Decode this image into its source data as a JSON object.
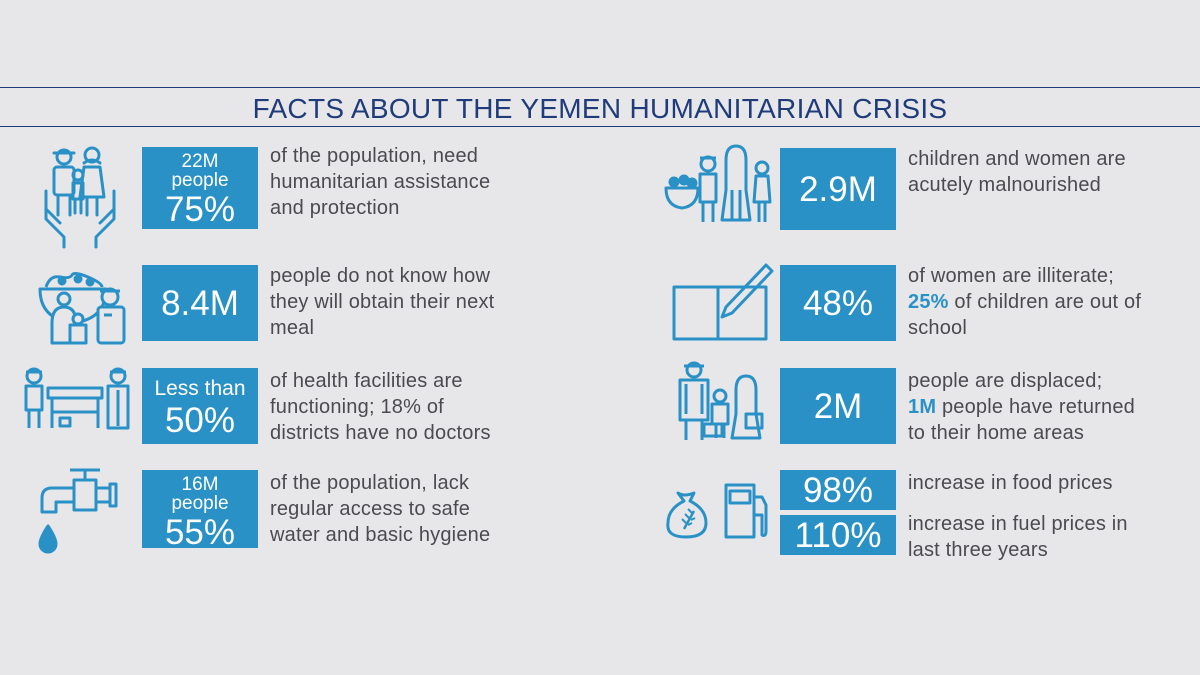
{
  "title": "FACTS ABOUT THE YEMEN HUMANITARIAN CRISIS",
  "colors": {
    "accent": "#2a91c6",
    "title": "#1f3b7a",
    "text": "#4b4b4f",
    "background": "#e7e7ea"
  },
  "left": [
    {
      "icon": "family-in-hands-icon",
      "stat_top": "22M",
      "stat_mid": "people",
      "stat_big": "75%",
      "desc": [
        "of the population, need",
        "humanitarian assistance",
        "and protection"
      ]
    },
    {
      "icon": "food-bowl-family-icon",
      "stat_big": "8.4M",
      "desc": [
        "people do not know how",
        "they will obtain their next",
        "meal"
      ]
    },
    {
      "icon": "health-facility-icon",
      "stat_top": "Less than",
      "stat_big": "50%",
      "desc": [
        "of health facilities are",
        "functioning; 18% of",
        "districts have no doctors"
      ]
    },
    {
      "icon": "water-tap-icon",
      "stat_top": "16M",
      "stat_mid": "people",
      "stat_big": "55%",
      "desc": [
        "of the population, lack",
        "regular access to safe",
        "water and basic hygiene"
      ]
    }
  ],
  "right": [
    {
      "icon": "malnourished-family-icon",
      "stat_big": "2.9M",
      "desc": [
        "children and women are",
        "acutely malnourished"
      ]
    },
    {
      "icon": "book-pencil-icon",
      "stat_big": "48%",
      "desc1": "of women are illiterate;",
      "desc2_hl": "25%",
      "desc2_rest": " of children are out of",
      "desc3": "school"
    },
    {
      "icon": "displaced-family-icon",
      "stat_big": "2M",
      "desc1": "people are displaced;",
      "desc2_hl": "1M",
      "desc2_rest": " people have returned",
      "desc3": "to their home areas"
    },
    {
      "icon": "wheat-sack-fuel-pump-icon",
      "stat_food": "98%",
      "stat_fuel": "110%",
      "food_desc": "increase in food prices",
      "fuel_desc": [
        "increase in fuel prices in",
        "last three years"
      ]
    }
  ]
}
